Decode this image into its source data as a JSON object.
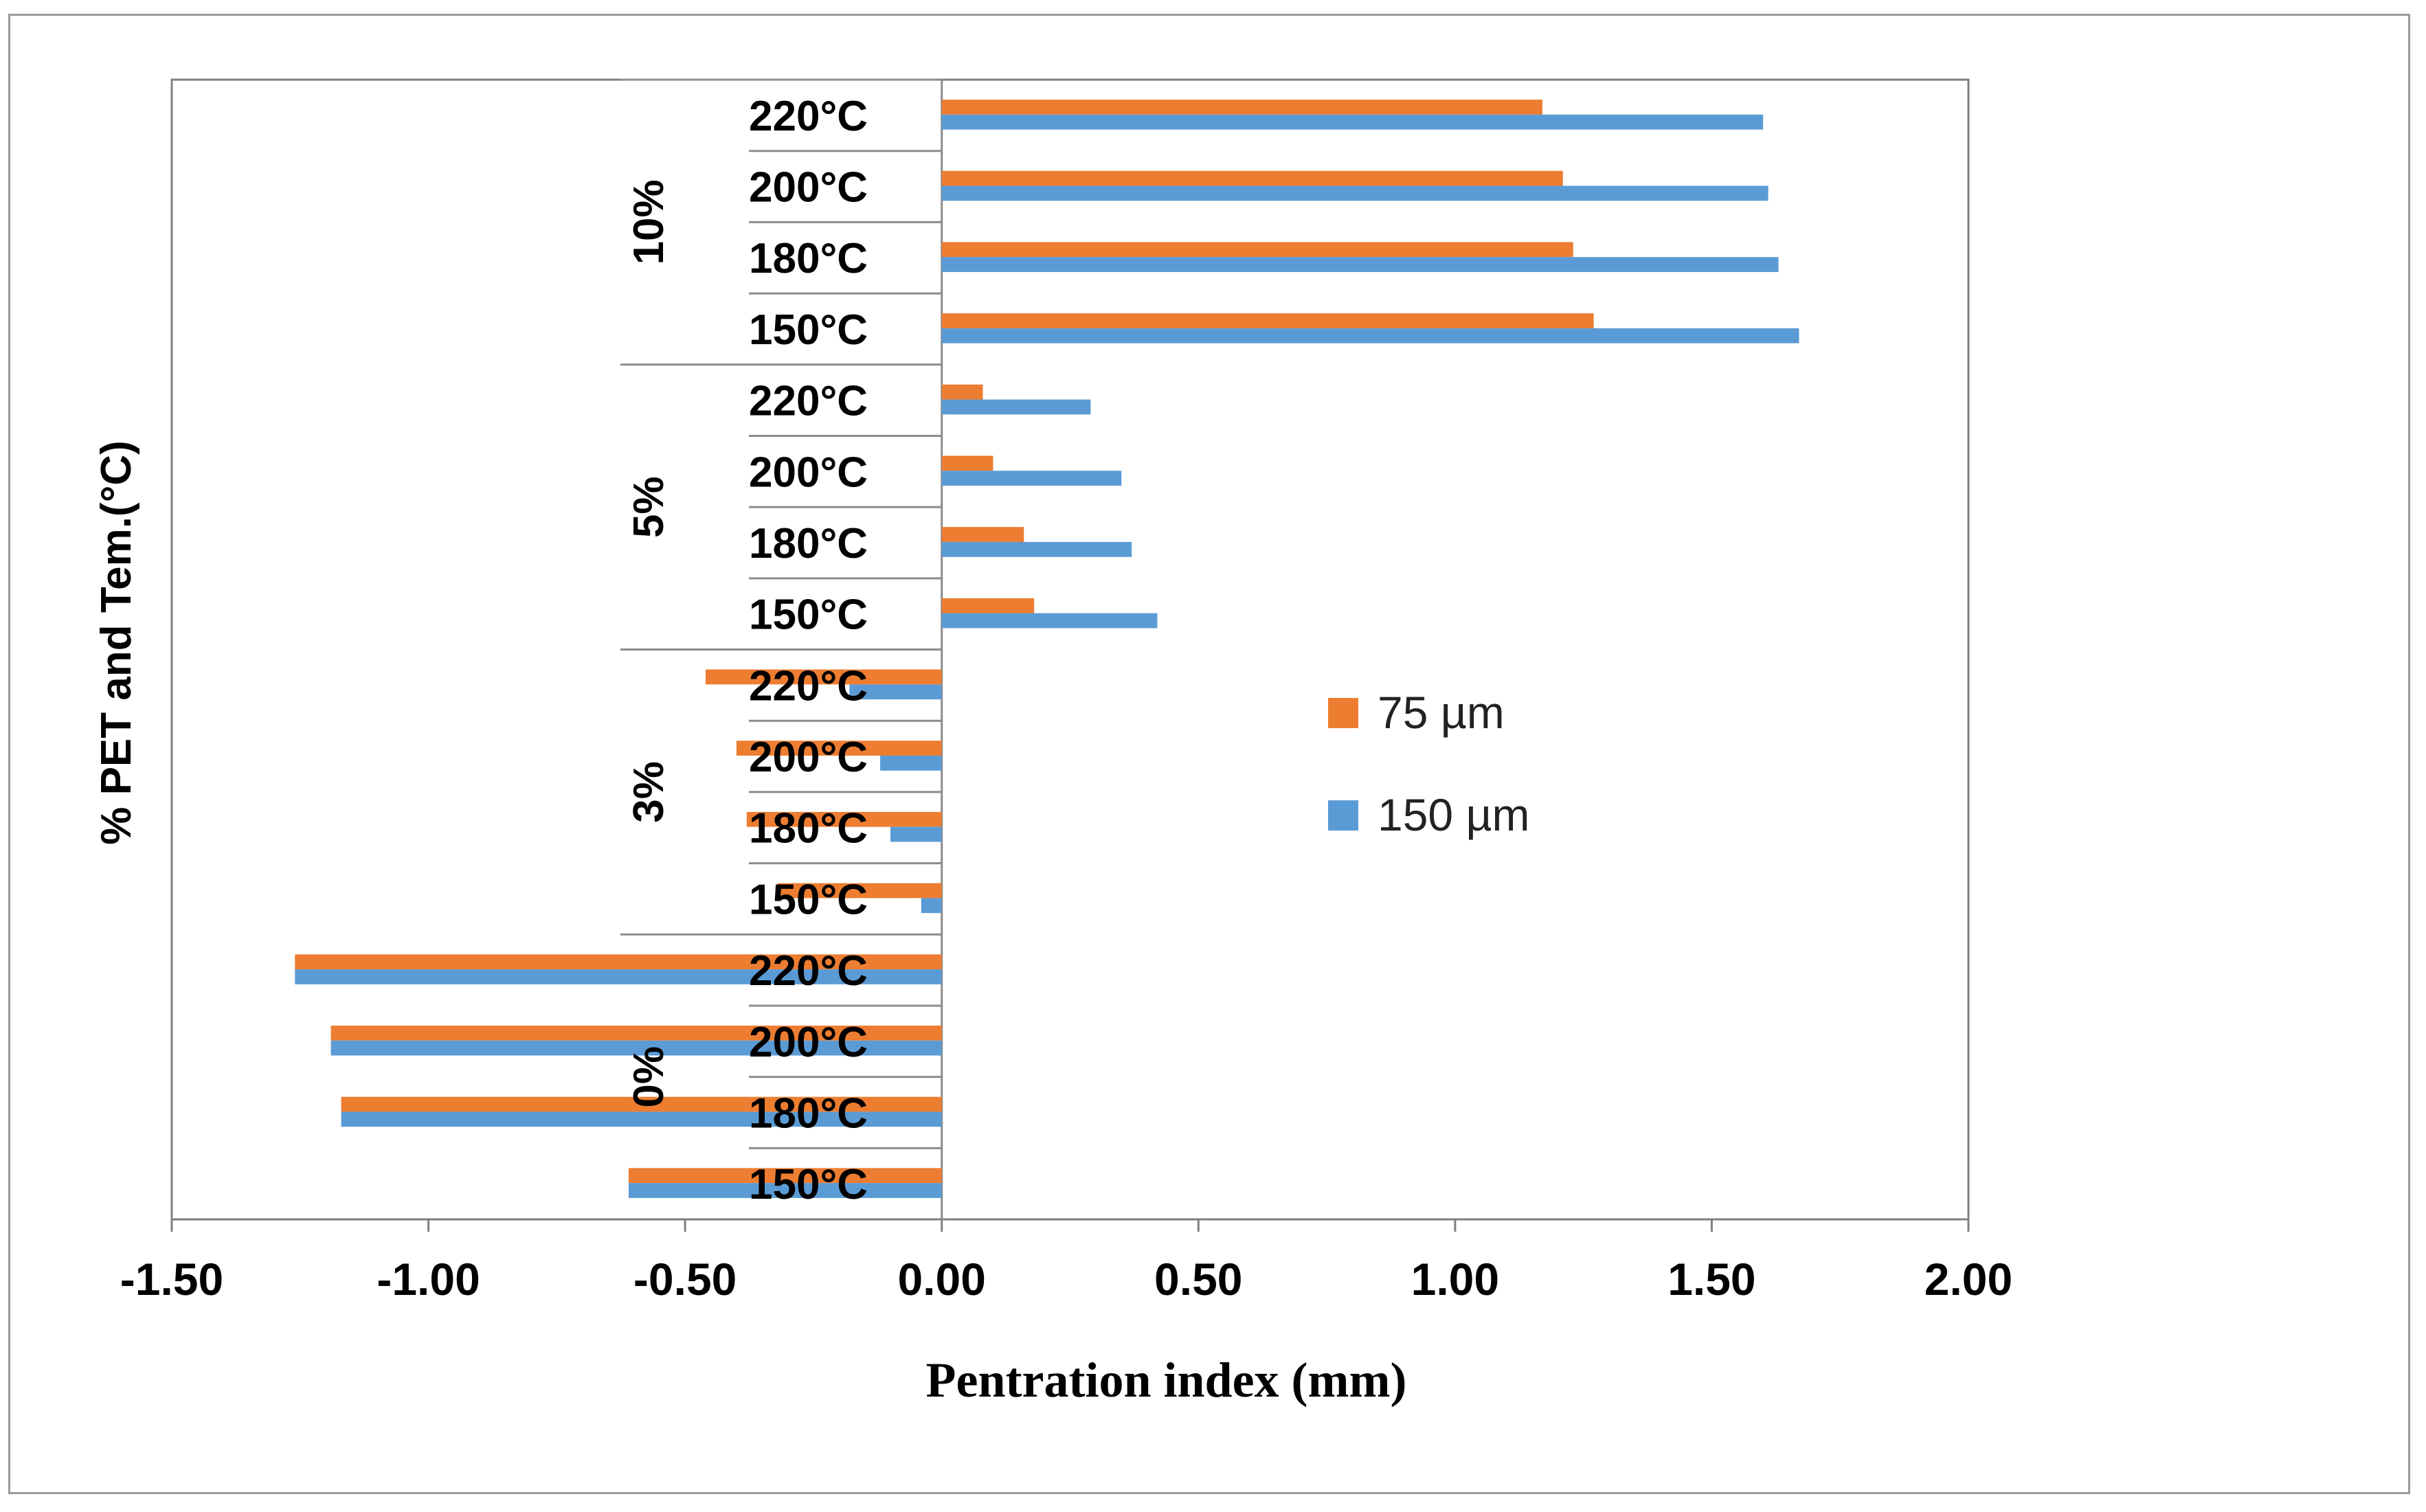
{
  "chart_data": {
    "type": "bar",
    "orientation": "horizontal",
    "title": "",
    "xlabel": "Pentration index (mm)",
    "ylabel": "% PET and Tem.(°C)",
    "xlim": [
      -1.5,
      2.0
    ],
    "xticks": [
      "-1.50",
      "-1.00",
      "-0.50",
      "0.00",
      "0.50",
      "1.00",
      "1.50",
      "2.00"
    ],
    "xtick_values": [
      -1.5,
      -1.0,
      -0.5,
      0.0,
      0.5,
      1.0,
      1.5,
      2.0
    ],
    "groups": [
      "0%",
      "3%",
      "5%",
      "10%"
    ],
    "temperatures": [
      "150°C",
      "180°C",
      "200°C",
      "220°C"
    ],
    "categories": [
      "0% 150°C",
      "0% 180°C",
      "0% 200°C",
      "0% 220°C",
      "3% 150°C",
      "3% 180°C",
      "3% 200°C",
      "3% 220°C",
      "5% 150°C",
      "5% 180°C",
      "5% 200°C",
      "5% 220°C",
      "10% 150°C",
      "10% 180°C",
      "10% 200°C",
      "10% 220°C"
    ],
    "series": [
      {
        "name": "75 µm",
        "color": "#ED7D31",
        "values": [
          -0.61,
          -1.17,
          -1.19,
          -1.26,
          -0.32,
          -0.38,
          -0.4,
          -0.46,
          0.18,
          0.16,
          0.1,
          0.08,
          1.27,
          1.23,
          1.21,
          1.17
        ]
      },
      {
        "name": "150 µm",
        "color": "#5B9BD5",
        "values": [
          -0.61,
          -1.17,
          -1.19,
          -1.26,
          -0.04,
          -0.1,
          -0.12,
          -0.18,
          0.42,
          0.37,
          0.35,
          0.29,
          1.67,
          1.63,
          1.61,
          1.6
        ]
      }
    ],
    "legend": "right-center",
    "grid": false
  }
}
